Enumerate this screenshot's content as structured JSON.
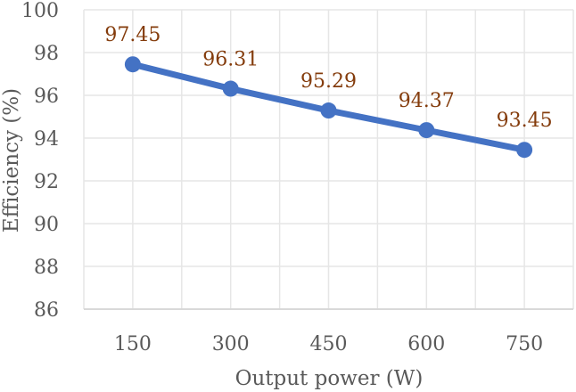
{
  "chart_data": {
    "type": "line",
    "title": "",
    "xlabel": "Output power (W)",
    "ylabel": "Efficiency (%)",
    "categories": [
      "150",
      "300",
      "450",
      "600",
      "750"
    ],
    "series": [
      {
        "name": "Efficiency",
        "values": [
          97.45,
          96.31,
          95.29,
          94.37,
          93.45
        ],
        "color": "#4472C4"
      }
    ],
    "data_labels": [
      "97.45",
      "96.31",
      "95.29",
      "94.37",
      "93.45"
    ],
    "ylim": [
      86,
      100
    ],
    "yticks": [
      "86",
      "88",
      "90",
      "92",
      "94",
      "96",
      "98",
      "100"
    ],
    "grid": true,
    "legend": "none",
    "colors": {
      "line": "#4472C4",
      "label": "#843C0C",
      "grid": "#E6E6E6",
      "axis_text": "#595959"
    }
  }
}
